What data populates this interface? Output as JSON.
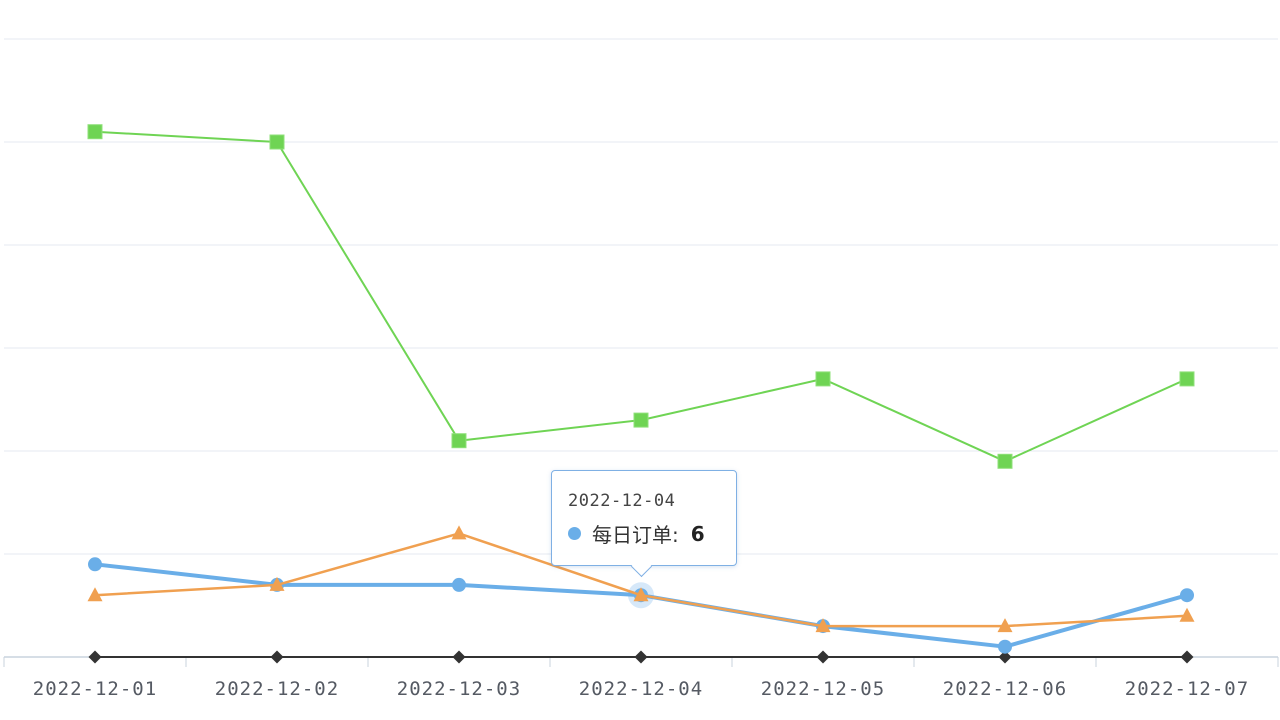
{
  "chart_data": {
    "type": "line",
    "categories": [
      "2022-12-01",
      "2022-12-02",
      "2022-12-03",
      "2022-12-04",
      "2022-12-05",
      "2022-12-06",
      "2022-12-07"
    ],
    "ylim": [
      0,
      60
    ],
    "grid": true,
    "legend": "none",
    "series": [
      {
        "marker": "square",
        "color": "#6fd454",
        "values": [
          51,
          50,
          21,
          23,
          27,
          19,
          27
        ]
      },
      {
        "marker": "circle",
        "color": "#6aaee8",
        "values": [
          9,
          7,
          7,
          6,
          3,
          1,
          6
        ]
      },
      {
        "marker": "triangle",
        "color": "#f0a050",
        "values": [
          6,
          7,
          12,
          6,
          3,
          3,
          4
        ]
      },
      {
        "marker": "diamond",
        "color": "#333333",
        "values": [
          0,
          0,
          0,
          0,
          0,
          0,
          0
        ]
      }
    ],
    "tooltip": {
      "date": "2022-12-04",
      "label": "每日订单:",
      "value": "6"
    }
  }
}
